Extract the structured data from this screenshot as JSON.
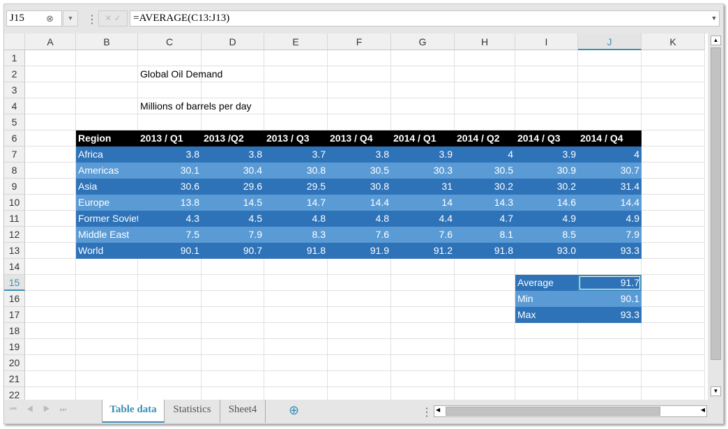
{
  "formula_bar": {
    "name_box": "J15",
    "formula": "=AVERAGE(C13:J13)"
  },
  "columns": [
    "A",
    "B",
    "C",
    "D",
    "E",
    "F",
    "G",
    "H",
    "I",
    "J",
    "K"
  ],
  "selected_column": "J",
  "selected_row": 15,
  "rows": [
    1,
    2,
    3,
    4,
    5,
    6,
    7,
    8,
    9,
    10,
    11,
    12,
    13,
    14,
    15,
    16,
    17,
    18,
    19,
    20,
    21,
    22
  ],
  "title": "Global Oil Demand",
  "subtitle": "Millions of barrels per day",
  "table": {
    "headers": [
      "Region",
      "2013 / Q1",
      "2013 /Q2",
      "2013 / Q3",
      "2013 / Q4",
      "2014 / Q1",
      "2014 / Q2",
      "2014 / Q3",
      "2014 / Q4"
    ],
    "rows": [
      [
        "Africa",
        "3.8",
        "3.8",
        "3.7",
        "3.8",
        "3.9",
        "4",
        "3.9",
        "4"
      ],
      [
        "Americas",
        "30.1",
        "30.4",
        "30.8",
        "30.5",
        "30.3",
        "30.5",
        "30.9",
        "30.7"
      ],
      [
        "Asia",
        "30.6",
        "29.6",
        "29.5",
        "30.8",
        "31",
        "30.2",
        "30.2",
        "31.4"
      ],
      [
        "Europe",
        "13.8",
        "14.5",
        "14.7",
        "14.4",
        "14",
        "14.3",
        "14.6",
        "14.4"
      ],
      [
        "Former Soviet Union",
        "4.3",
        "4.5",
        "4.8",
        "4.8",
        "4.4",
        "4.7",
        "4.9",
        "4.9"
      ],
      [
        "Middle East",
        "7.5",
        "7.9",
        "8.3",
        "7.6",
        "7.6",
        "8.1",
        "8.5",
        "7.9"
      ],
      [
        "World",
        "90.1",
        "90.7",
        "91.8",
        "91.9",
        "91.2",
        "91.8",
        "93.0",
        "93.3"
      ]
    ]
  },
  "stats": [
    [
      "Average",
      "91.7"
    ],
    [
      "Min",
      "90.1"
    ],
    [
      "Max",
      "93.3"
    ]
  ],
  "sheet_tabs": [
    {
      "label": "Table data",
      "active": true
    },
    {
      "label": "Statistics",
      "active": false
    },
    {
      "label": "Sheet4",
      "active": false
    }
  ],
  "colors": {
    "header_bg": "#000000",
    "dark_row": "#2e72b8",
    "light_row": "#5b9bd5",
    "accent": "#3a8fb5"
  }
}
